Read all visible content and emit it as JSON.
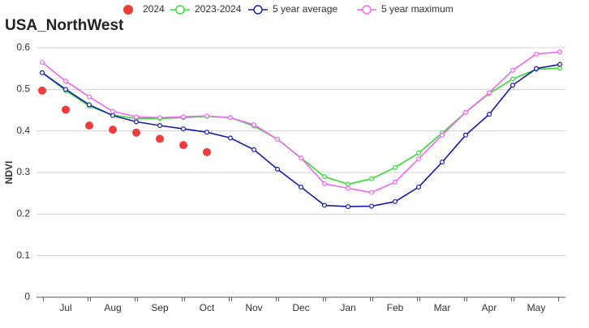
{
  "chart_data": {
    "type": "line",
    "title": "USA_NorthWest",
    "y_label": "NDVI",
    "categories": [
      null,
      "Jul",
      null,
      "Aug",
      null,
      "Sep",
      null,
      "Oct",
      null,
      "Nov",
      null,
      "Dec",
      null,
      "Jan",
      null,
      "Feb",
      null,
      "Mar",
      null,
      "Apr",
      null,
      "May",
      null
    ],
    "series": [
      {
        "name": "2024",
        "color": "#f03c3c",
        "style": "dots",
        "values": [
          0.497,
          0.451,
          0.413,
          0.403,
          0.396,
          0.381,
          0.366,
          0.349,
          null,
          null,
          null,
          null,
          null,
          null,
          null,
          null,
          null,
          null,
          null,
          null,
          null,
          null,
          null
        ]
      },
      {
        "name": "2023-2024",
        "color": "#33dd33",
        "style": "line",
        "values": [
          0.54,
          0.497,
          0.46,
          0.438,
          0.43,
          0.43,
          0.432,
          0.435,
          0.432,
          0.412,
          0.38,
          0.335,
          0.29,
          0.272,
          0.285,
          0.312,
          0.347,
          0.395,
          0.445,
          0.49,
          0.525,
          0.548,
          0.551
        ]
      },
      {
        "name": "5 year average",
        "color": "#1a1aa6",
        "style": "line",
        "values": [
          0.54,
          0.5,
          0.463,
          0.437,
          0.422,
          0.413,
          0.405,
          0.397,
          0.383,
          0.355,
          0.308,
          0.265,
          0.221,
          0.218,
          0.219,
          0.23,
          0.265,
          0.325,
          0.39,
          0.44,
          0.51,
          0.55,
          0.56
        ]
      },
      {
        "name": "5 year maximum",
        "color": "#ee66ee",
        "style": "line",
        "values": [
          0.565,
          0.52,
          0.482,
          0.447,
          0.434,
          0.432,
          0.434,
          0.436,
          0.432,
          0.415,
          0.38,
          0.335,
          0.273,
          0.262,
          0.252,
          0.277,
          0.333,
          0.39,
          0.445,
          0.492,
          0.546,
          0.585,
          0.59
        ]
      }
    ],
    "ylim": [
      0,
      0.6
    ],
    "yticks": [
      0,
      0.1,
      0.2,
      0.3,
      0.4,
      0.5,
      0.6
    ],
    "grid": true,
    "legend": "top"
  }
}
